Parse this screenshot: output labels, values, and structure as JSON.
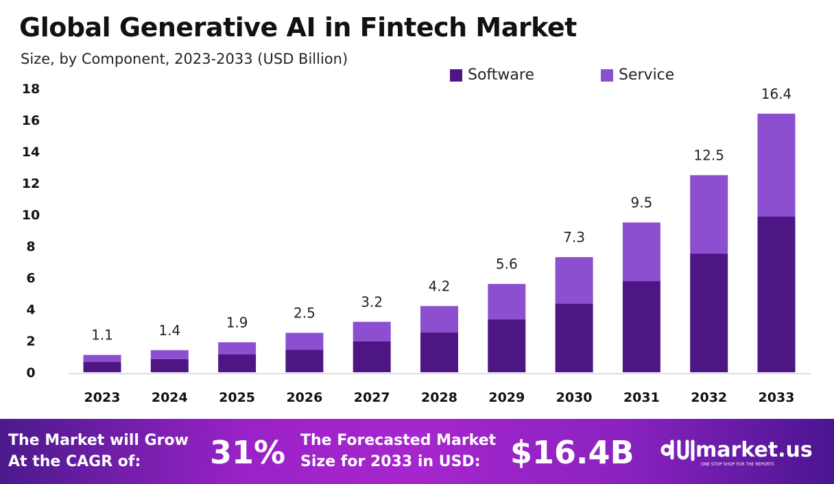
{
  "chart_data": {
    "type": "bar",
    "stacked": true,
    "title": "Global Generative AI in Fintech Market",
    "subtitle": "Size, by Component, 2023-2033 (USD Billion)",
    "categories": [
      "2023",
      "2024",
      "2025",
      "2026",
      "2027",
      "2028",
      "2029",
      "2030",
      "2031",
      "2032",
      "2033"
    ],
    "series": [
      {
        "name": "Software",
        "color": "#4e1585",
        "values": [
          0.65,
          0.83,
          1.13,
          1.43,
          1.96,
          2.52,
          3.35,
          4.35,
          5.78,
          7.52,
          9.87
        ]
      },
      {
        "name": "Service",
        "color": "#8b4fcf",
        "values": [
          0.45,
          0.57,
          0.77,
          1.07,
          1.24,
          1.68,
          2.25,
          2.95,
          3.72,
          4.98,
          6.53
        ]
      }
    ],
    "totals": [
      "1.1",
      "1.4",
      "1.9",
      "2.5",
      "3.2",
      "4.2",
      "5.6",
      "7.3",
      "9.5",
      "12.5",
      "16.4"
    ],
    "yticks": [
      "0",
      "2",
      "4",
      "6",
      "8",
      "10",
      "12",
      "14",
      "16",
      "18"
    ],
    "ylim": [
      0,
      18
    ],
    "grid": false,
    "legend": "top-right"
  },
  "footer": {
    "cagr_label_1": "The Market will Grow",
    "cagr_label_2": "At the CAGR of:",
    "cagr_value": "31%",
    "forecast_label_1": "The Forecasted Market",
    "forecast_label_2": "Size for 2033 in USD:",
    "forecast_value": "$16.4B",
    "logo_name": "market.us",
    "logo_tagline": "ONE STOP SHOP FOR THE REPORTS"
  }
}
